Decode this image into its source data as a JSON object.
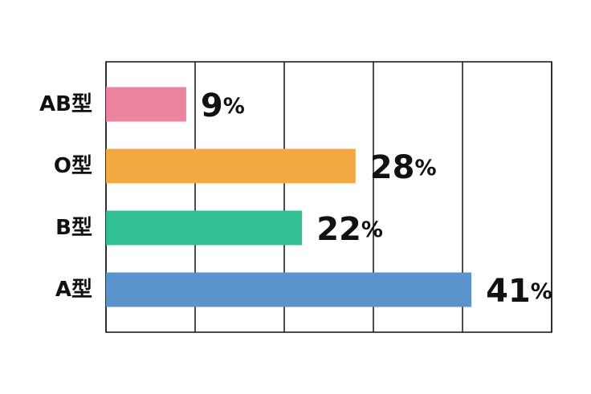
{
  "chart_data": {
    "type": "bar",
    "orientation": "horizontal",
    "categories": [
      "AB型",
      "O型",
      "B型",
      "A型"
    ],
    "values": [
      9,
      28,
      22,
      41
    ],
    "value_labels": [
      "9%",
      "28%",
      "22%",
      "41%"
    ],
    "colors": [
      "#ec84a0",
      "#f2a942",
      "#33bf94",
      "#5b93cb"
    ],
    "xlim": [
      0,
      50
    ],
    "xticks": [
      0,
      10,
      20,
      30,
      40,
      50
    ],
    "grid": true
  }
}
